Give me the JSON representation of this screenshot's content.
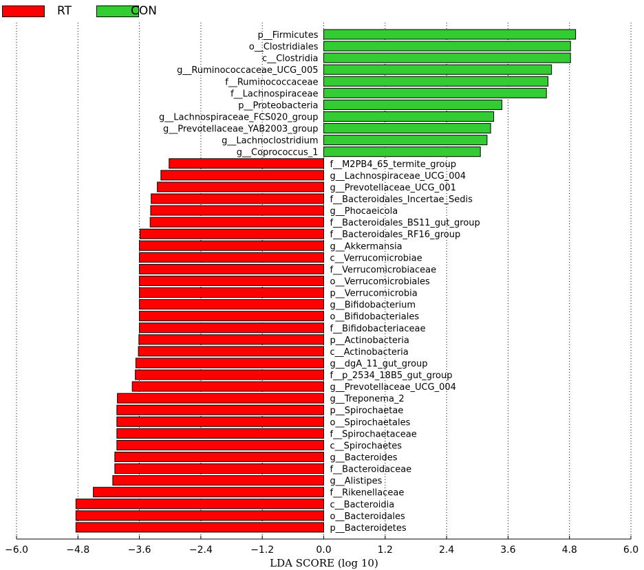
{
  "chart_data": {
    "type": "bar",
    "orientation": "horizontal",
    "xlabel": "LDA SCORE (log 10)",
    "xlim": [
      -6.0,
      6.0
    ],
    "xticks": [
      -6.0,
      -4.8,
      -3.6,
      -2.4,
      -1.2,
      0.0,
      1.2,
      2.4,
      3.6,
      4.8,
      6.0
    ],
    "xtick_labels": [
      "−6.0",
      "−4.8",
      "−3.6",
      "−2.4",
      "−1.2",
      "0.0",
      "1.2",
      "2.4",
      "3.6",
      "4.8",
      "6.0"
    ],
    "grid": "vertical-dotted",
    "legend_position": "top-left",
    "legend": [
      {
        "name": "RT",
        "color": "#ff0000"
      },
      {
        "name": "CON",
        "color": "#33cc33"
      }
    ],
    "bars": [
      {
        "label": "p__Firmicutes",
        "value": 4.92,
        "group": "CON"
      },
      {
        "label": "o__Clostridiales",
        "value": 4.82,
        "group": "CON"
      },
      {
        "label": "c__Clostridia",
        "value": 4.82,
        "group": "CON"
      },
      {
        "label": "g__Ruminococcaceae_UCG_005",
        "value": 4.45,
        "group": "CON"
      },
      {
        "label": "f__Ruminococcaceae",
        "value": 4.38,
        "group": "CON"
      },
      {
        "label": "f__Lachnospiraceae",
        "value": 4.35,
        "group": "CON"
      },
      {
        "label": "p__Proteobacteria",
        "value": 3.48,
        "group": "CON"
      },
      {
        "label": "g__Lachnospiraceae_FCS020_group",
        "value": 3.32,
        "group": "CON"
      },
      {
        "label": "g__Prevotellaceae_YAB2003_group",
        "value": 3.26,
        "group": "CON"
      },
      {
        "label": "g__Lachnoclostridium",
        "value": 3.19,
        "group": "CON"
      },
      {
        "label": "g__Coprococcus_1",
        "value": 3.06,
        "group": "CON"
      },
      {
        "label": "f__M2PB4_65_termite_group",
        "value": -3.02,
        "group": "RT"
      },
      {
        "label": "g__Lachnospiraceae_UCG_004",
        "value": -3.18,
        "group": "RT"
      },
      {
        "label": "g__Prevotellaceae_UCG_001",
        "value": -3.25,
        "group": "RT"
      },
      {
        "label": "f__Bacteroidales_Incertae_Sedis",
        "value": -3.37,
        "group": "RT"
      },
      {
        "label": "g__Phocaeicola",
        "value": -3.38,
        "group": "RT"
      },
      {
        "label": "f__Bacteroidales_BS11_gut_group",
        "value": -3.39,
        "group": "RT"
      },
      {
        "label": "f__Bacteroidales_RF16_group",
        "value": -3.59,
        "group": "RT"
      },
      {
        "label": "g__Akkermansia",
        "value": -3.6,
        "group": "RT"
      },
      {
        "label": "c__Verrucomicrobiae",
        "value": -3.6,
        "group": "RT"
      },
      {
        "label": "f__Verrucomicrobiaceae",
        "value": -3.6,
        "group": "RT"
      },
      {
        "label": "o__Verrucomicrobiales",
        "value": -3.6,
        "group": "RT"
      },
      {
        "label": "p__Verrucomicrobia",
        "value": -3.6,
        "group": "RT"
      },
      {
        "label": "g__Bifidobacterium",
        "value": -3.6,
        "group": "RT"
      },
      {
        "label": "o__Bifidobacteriales",
        "value": -3.6,
        "group": "RT"
      },
      {
        "label": "f__Bifidobacteriaceae",
        "value": -3.6,
        "group": "RT"
      },
      {
        "label": "p__Actinobacteria",
        "value": -3.61,
        "group": "RT"
      },
      {
        "label": "c__Actinobacteria",
        "value": -3.62,
        "group": "RT"
      },
      {
        "label": "g__dgA_11_gut_group",
        "value": -3.67,
        "group": "RT"
      },
      {
        "label": "f__p_2534_18B5_gut_group",
        "value": -3.68,
        "group": "RT"
      },
      {
        "label": "g__Prevotellaceae_UCG_004",
        "value": -3.74,
        "group": "RT"
      },
      {
        "label": "g__Treponema_2",
        "value": -4.03,
        "group": "RT"
      },
      {
        "label": "p__Spirochaetae",
        "value": -4.04,
        "group": "RT"
      },
      {
        "label": "o__Spirochaetales",
        "value": -4.04,
        "group": "RT"
      },
      {
        "label": "f__Spirochaetaceae",
        "value": -4.04,
        "group": "RT"
      },
      {
        "label": "c__Spirochaetes",
        "value": -4.04,
        "group": "RT"
      },
      {
        "label": "g__Bacteroides",
        "value": -4.08,
        "group": "RT"
      },
      {
        "label": "f__Bacteroidaceae",
        "value": -4.08,
        "group": "RT"
      },
      {
        "label": "g__Alistipes",
        "value": -4.12,
        "group": "RT"
      },
      {
        "label": "f__Rikenellaceae",
        "value": -4.5,
        "group": "RT"
      },
      {
        "label": "c__Bacteroidia",
        "value": -4.84,
        "group": "RT"
      },
      {
        "label": "o__Bacteroidales",
        "value": -4.84,
        "group": "RT"
      },
      {
        "label": "p__Bacteroidetes",
        "value": -4.84,
        "group": "RT"
      }
    ]
  }
}
